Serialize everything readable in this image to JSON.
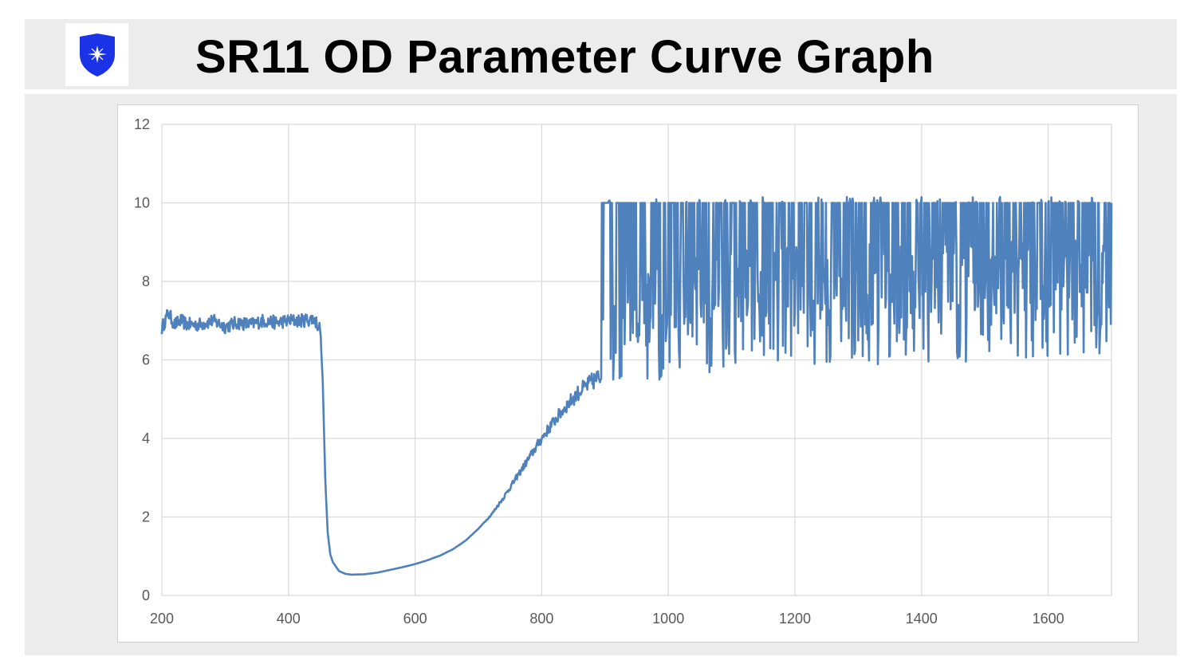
{
  "page": {
    "title": "SR11 OD Parameter Curve Graph",
    "logo": {
      "icon": "shield-star-icon",
      "color": "#1a33e6"
    }
  },
  "chart_data": {
    "type": "line",
    "title": "",
    "xlabel": "",
    "ylabel": "",
    "xlim": [
      200,
      1700
    ],
    "ylim": [
      0,
      12
    ],
    "x_ticks": [
      "200",
      "400",
      "600",
      "800",
      "1000",
      "1200",
      "1400",
      "1600"
    ],
    "y_ticks": [
      "0",
      "2",
      "4",
      "6",
      "8",
      "10",
      "12"
    ],
    "grid": true,
    "legend": "none",
    "series": [
      {
        "color": "#4f81bd",
        "x": [
          200,
          210,
          220,
          230,
          240,
          260,
          280,
          300,
          320,
          340,
          360,
          380,
          400,
          420,
          440,
          450,
          454,
          458,
          462,
          466,
          470,
          480,
          490,
          500,
          520,
          540,
          560,
          580,
          600,
          620,
          640,
          660,
          680,
          700,
          720,
          740,
          760,
          780,
          800,
          820,
          840,
          860,
          880,
          900,
          920,
          940,
          960,
          980,
          1000,
          1020,
          1040,
          1060,
          1080,
          1100,
          1120,
          1140,
          1160,
          1180,
          1200,
          1220,
          1240,
          1260,
          1280,
          1300,
          1320,
          1340,
          1360,
          1380,
          1400,
          1420,
          1440,
          1460,
          1480,
          1500,
          1520,
          1540,
          1560,
          1580,
          1600,
          1620,
          1640,
          1660,
          1680,
          1700
        ],
        "values": [
          6.8,
          7.2,
          6.9,
          7.0,
          6.9,
          6.9,
          7.0,
          6.85,
          6.95,
          6.9,
          7.0,
          6.95,
          7.0,
          7.0,
          7.05,
          6.8,
          5.5,
          3.0,
          1.6,
          1.05,
          0.85,
          0.62,
          0.55,
          0.53,
          0.54,
          0.58,
          0.65,
          0.72,
          0.8,
          0.9,
          1.02,
          1.18,
          1.4,
          1.7,
          2.05,
          2.5,
          3.0,
          3.5,
          4.0,
          4.45,
          4.85,
          5.2,
          5.45,
          5.65,
          5.85,
          6.0,
          6.15,
          6.25,
          6.35,
          6.45,
          6.5,
          6.55,
          6.6,
          6.6,
          6.62,
          6.65,
          6.65,
          6.67,
          6.7,
          6.7,
          6.72,
          6.72,
          6.74,
          6.75,
          6.75,
          6.77,
          6.77,
          6.78,
          6.78,
          6.8,
          6.8,
          6.8,
          6.82,
          6.82,
          6.83,
          6.83,
          6.84,
          6.84,
          6.85,
          6.85,
          6.85,
          6.86,
          6.86,
          6.86
        ],
        "noise_from_x": 895,
        "noise_ceiling": 10.0,
        "noise_floor_min": 5.5
      }
    ]
  }
}
